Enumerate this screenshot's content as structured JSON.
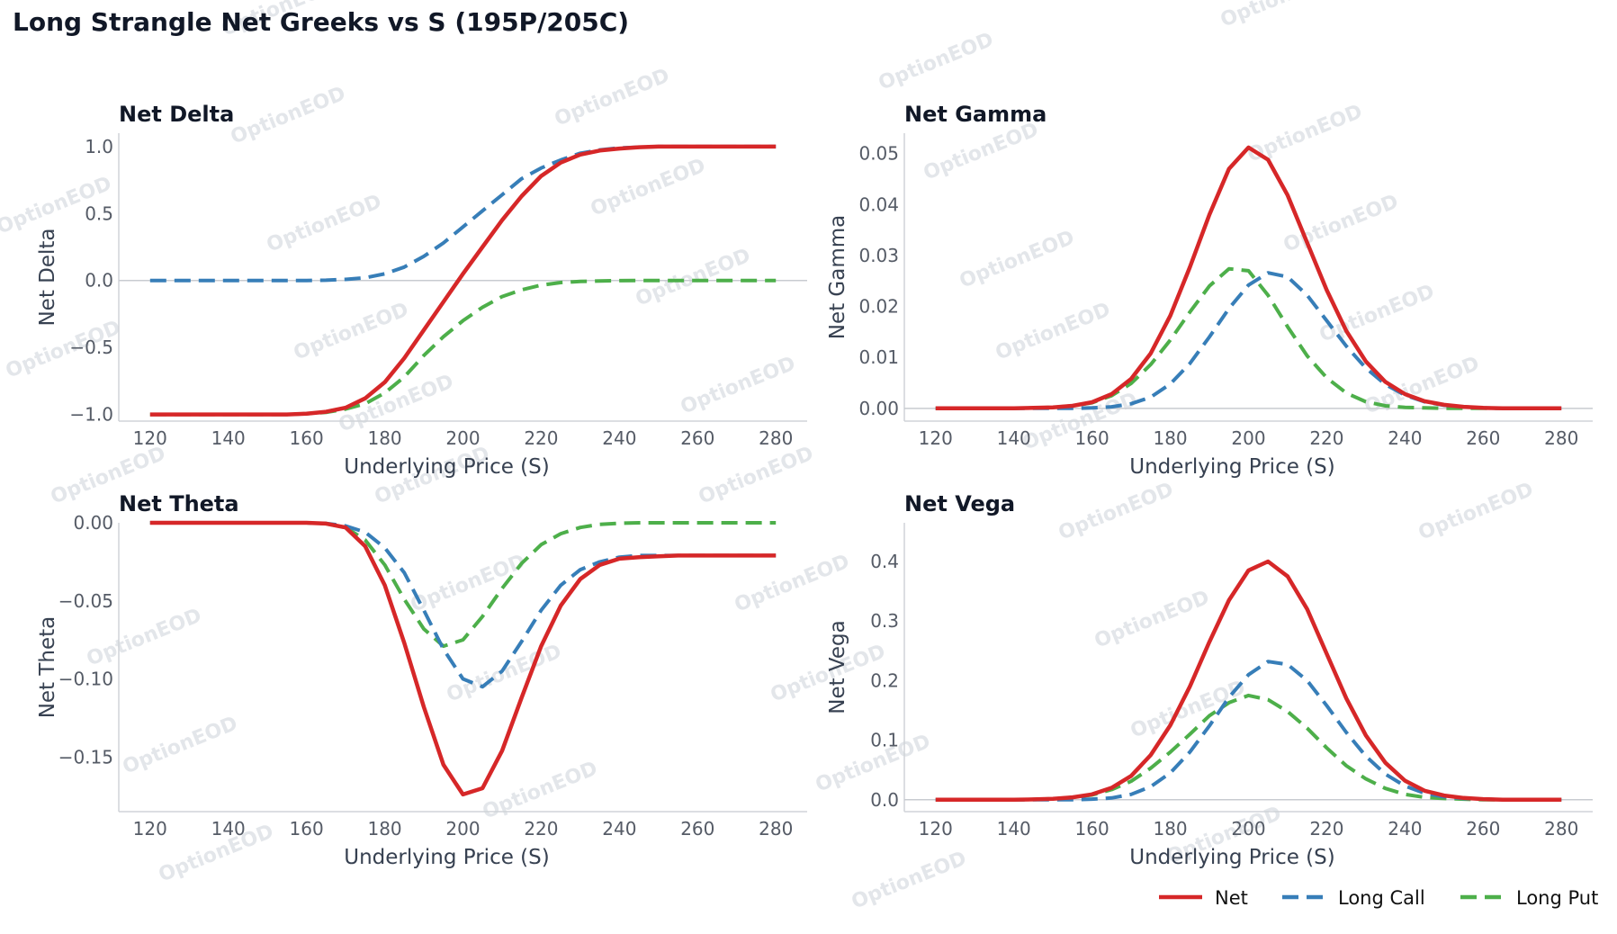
{
  "chart_data": {
    "title": "Long Strangle Net Greeks vs S (195P/205C)",
    "legend": {
      "placement": "bottom-right",
      "entries": [
        {
          "name": "Net",
          "color": "#d62728",
          "style": "solid"
        },
        {
          "name": "Long Call",
          "color": "#377eb8",
          "style": "dashed"
        },
        {
          "name": "Long Put",
          "color": "#4daf4a",
          "style": "dashed"
        }
      ]
    },
    "watermark": "OptionEOD",
    "panels": [
      {
        "id": "delta",
        "type": "line",
        "title": "Net Delta",
        "xlabel": "Underlying Price (S)",
        "ylabel": "Net Delta",
        "xlim": [
          112,
          288
        ],
        "ylim": [
          -1.05,
          1.1
        ],
        "xticks": [
          120,
          140,
          160,
          180,
          200,
          220,
          240,
          260,
          280
        ],
        "yticks": [
          1.0,
          0.5,
          0.0,
          -0.5,
          -1.0
        ],
        "ytick_labels": [
          "1.0",
          "0.5",
          "0.0",
          "−0.5",
          "−1.0"
        ],
        "zero_line": true,
        "x": [
          120,
          125,
          130,
          135,
          140,
          145,
          150,
          155,
          160,
          165,
          170,
          175,
          180,
          185,
          190,
          195,
          200,
          205,
          210,
          215,
          220,
          225,
          230,
          235,
          240,
          245,
          250,
          255,
          260,
          265,
          270,
          275,
          280
        ],
        "series": [
          {
            "name": "Net",
            "values": [
              -1.0,
              -1.0,
              -1.0,
              -1.0,
              -1.0,
              -1.0,
              -1.0,
              -1.0,
              -0.995,
              -0.98,
              -0.95,
              -0.88,
              -0.76,
              -0.58,
              -0.37,
              -0.16,
              0.05,
              0.25,
              0.45,
              0.63,
              0.78,
              0.88,
              0.94,
              0.97,
              0.985,
              0.995,
              1.0,
              1.0,
              1.0,
              1.0,
              1.0,
              1.0,
              1.0
            ]
          },
          {
            "name": "Long Call",
            "values": [
              0.0,
              0.0,
              0.0,
              0.0,
              0.0,
              0.0,
              0.0,
              0.0,
              0.0,
              0.002,
              0.008,
              0.02,
              0.05,
              0.1,
              0.18,
              0.28,
              0.4,
              0.52,
              0.64,
              0.76,
              0.84,
              0.9,
              0.95,
              0.975,
              0.99,
              0.995,
              1.0,
              1.0,
              1.0,
              1.0,
              1.0,
              1.0,
              1.0
            ]
          },
          {
            "name": "Long Put",
            "values": [
              -1.0,
              -1.0,
              -1.0,
              -1.0,
              -1.0,
              -1.0,
              -1.0,
              -1.0,
              -0.995,
              -0.985,
              -0.96,
              -0.92,
              -0.84,
              -0.72,
              -0.56,
              -0.42,
              -0.3,
              -0.2,
              -0.12,
              -0.07,
              -0.035,
              -0.015,
              -0.007,
              -0.003,
              -0.001,
              0.0,
              0.0,
              0.0,
              0.0,
              0.0,
              0.0,
              0.0,
              0.0
            ]
          }
        ]
      },
      {
        "id": "gamma",
        "type": "line",
        "title": "Net Gamma",
        "xlabel": "Underlying Price (S)",
        "ylabel": "Net Gamma",
        "xlim": [
          112,
          288
        ],
        "ylim": [
          -0.0025,
          0.054
        ],
        "xticks": [
          120,
          140,
          160,
          180,
          200,
          220,
          240,
          260,
          280
        ],
        "yticks": [
          0.05,
          0.04,
          0.03,
          0.02,
          0.01,
          0.0
        ],
        "ytick_labels": [
          "0.05",
          "0.04",
          "0.03",
          "0.02",
          "0.01",
          "0.00"
        ],
        "zero_line": true,
        "x": [
          120,
          125,
          130,
          135,
          140,
          145,
          150,
          155,
          160,
          165,
          170,
          175,
          180,
          185,
          190,
          195,
          200,
          205,
          210,
          215,
          220,
          225,
          230,
          235,
          240,
          245,
          250,
          255,
          260,
          265,
          270,
          275,
          280
        ],
        "series": [
          {
            "name": "Net",
            "values": [
              0.0,
              0.0,
              0.0,
              0.0,
              0.0,
              0.0001,
              0.0002,
              0.0005,
              0.0012,
              0.0028,
              0.0058,
              0.0108,
              0.0182,
              0.0277,
              0.038,
              0.047,
              0.0512,
              0.0488,
              0.0418,
              0.0325,
              0.0232,
              0.0152,
              0.0092,
              0.0052,
              0.0028,
              0.0014,
              0.0007,
              0.0003,
              0.0001,
              0.0,
              0.0,
              0.0,
              0.0
            ]
          },
          {
            "name": "Long Call",
            "values": [
              0.0,
              0.0,
              0.0,
              0.0,
              0.0,
              0.0,
              0.0,
              0.0,
              0.0001,
              0.0003,
              0.0009,
              0.0022,
              0.0048,
              0.0088,
              0.014,
              0.0196,
              0.0242,
              0.0266,
              0.0258,
              0.0222,
              0.0172,
              0.0122,
              0.0079,
              0.0047,
              0.0026,
              0.0013,
              0.0006,
              0.0003,
              0.0001,
              0.0,
              0.0,
              0.0,
              0.0
            ]
          },
          {
            "name": "Long Put",
            "values": [
              0.0,
              0.0,
              0.0,
              0.0,
              0.0,
              0.0001,
              0.0002,
              0.0005,
              0.0011,
              0.0025,
              0.0049,
              0.0086,
              0.0134,
              0.0189,
              0.024,
              0.0274,
              0.027,
              0.0222,
              0.016,
              0.0103,
              0.006,
              0.003,
              0.0013,
              0.0005,
              0.0002,
              0.0001,
              0.0,
              0.0,
              0.0,
              0.0,
              0.0,
              0.0,
              0.0
            ]
          }
        ]
      },
      {
        "id": "theta",
        "type": "line",
        "title": "Net Theta",
        "xlabel": "Underlying Price (S)",
        "ylabel": "Net Theta",
        "xlim": [
          112,
          288
        ],
        "ylim": [
          -0.185,
          0.0
        ],
        "xticks": [
          120,
          140,
          160,
          180,
          200,
          220,
          240,
          260,
          280
        ],
        "yticks": [
          0.0,
          -0.05,
          -0.1,
          -0.15
        ],
        "ytick_labels": [
          "0.00",
          "−0.05",
          "−0.10",
          "−0.15"
        ],
        "zero_line": false,
        "x": [
          120,
          125,
          130,
          135,
          140,
          145,
          150,
          155,
          160,
          165,
          170,
          175,
          180,
          185,
          190,
          195,
          200,
          205,
          210,
          215,
          220,
          225,
          230,
          235,
          240,
          245,
          250,
          255,
          260,
          265,
          270,
          275,
          280
        ],
        "series": [
          {
            "name": "Net",
            "values": [
              0.0,
              0.0,
              0.0,
              0.0,
              0.0,
              0.0,
              0.0,
              0.0,
              0.0,
              -0.0005,
              -0.003,
              -0.015,
              -0.04,
              -0.077,
              -0.118,
              -0.155,
              -0.174,
              -0.17,
              -0.146,
              -0.112,
              -0.079,
              -0.053,
              -0.036,
              -0.027,
              -0.023,
              -0.022,
              -0.0215,
              -0.021,
              -0.021,
              -0.021,
              -0.021,
              -0.021,
              -0.021
            ]
          },
          {
            "name": "Long Call",
            "values": [
              0.0,
              0.0,
              0.0,
              0.0,
              0.0,
              0.0,
              0.0,
              0.0,
              0.0,
              -0.0004,
              -0.002,
              -0.006,
              -0.016,
              -0.032,
              -0.056,
              -0.081,
              -0.1,
              -0.105,
              -0.095,
              -0.076,
              -0.056,
              -0.04,
              -0.03,
              -0.025,
              -0.022,
              -0.021,
              -0.021,
              -0.021,
              -0.021,
              -0.021,
              -0.021,
              -0.021,
              -0.021
            ]
          },
          {
            "name": "Long Put",
            "values": [
              0.0,
              0.0,
              0.0,
              0.0,
              0.0,
              0.0,
              0.0,
              0.0,
              0.0,
              -0.0006,
              -0.003,
              -0.011,
              -0.027,
              -0.049,
              -0.068,
              -0.079,
              -0.075,
              -0.06,
              -0.042,
              -0.026,
              -0.014,
              -0.007,
              -0.003,
              -0.001,
              -0.0003,
              0.0,
              0.0,
              0.0,
              0.0,
              0.0,
              0.0,
              0.0,
              0.0
            ]
          }
        ]
      },
      {
        "id": "vega",
        "type": "line",
        "title": "Net Vega",
        "xlabel": "Underlying Price (S)",
        "ylabel": "Net Vega",
        "xlim": [
          112,
          288
        ],
        "ylim": [
          -0.02,
          0.465
        ],
        "xticks": [
          120,
          140,
          160,
          180,
          200,
          220,
          240,
          260,
          280
        ],
        "yticks": [
          0.4,
          0.3,
          0.2,
          0.1,
          0.0
        ],
        "ytick_labels": [
          "0.4",
          "0.3",
          "0.2",
          "0.1",
          "0.0"
        ],
        "zero_line": true,
        "x": [
          120,
          125,
          130,
          135,
          140,
          145,
          150,
          155,
          160,
          165,
          170,
          175,
          180,
          185,
          190,
          195,
          200,
          205,
          210,
          215,
          220,
          225,
          230,
          235,
          240,
          245,
          250,
          255,
          260,
          265,
          270,
          275,
          280
        ],
        "series": [
          {
            "name": "Net",
            "values": [
              0.0,
              0.0,
              0.0,
              0.0,
              0.0,
              0.0005,
              0.0015,
              0.004,
              0.009,
              0.02,
              0.04,
              0.075,
              0.125,
              0.19,
              0.265,
              0.335,
              0.385,
              0.4,
              0.375,
              0.32,
              0.245,
              0.17,
              0.108,
              0.062,
              0.032,
              0.015,
              0.007,
              0.003,
              0.001,
              0.0,
              0.0,
              0.0,
              0.0
            ]
          },
          {
            "name": "Long Call",
            "values": [
              0.0,
              0.0,
              0.0,
              0.0,
              0.0,
              0.0,
              0.0,
              0.0,
              0.001,
              0.003,
              0.009,
              0.022,
              0.045,
              0.08,
              0.124,
              0.172,
              0.21,
              0.232,
              0.227,
              0.2,
              0.158,
              0.113,
              0.073,
              0.043,
              0.023,
              0.011,
              0.005,
              0.002,
              0.001,
              0.0,
              0.0,
              0.0,
              0.0
            ]
          },
          {
            "name": "Long Put",
            "values": [
              0.0,
              0.0,
              0.0,
              0.0,
              0.0,
              0.0005,
              0.0015,
              0.004,
              0.008,
              0.017,
              0.031,
              0.053,
              0.08,
              0.11,
              0.141,
              0.163,
              0.175,
              0.168,
              0.148,
              0.12,
              0.087,
              0.057,
              0.035,
              0.019,
              0.009,
              0.004,
              0.002,
              0.001,
              0.0,
              0.0,
              0.0,
              0.0,
              0.0
            ]
          }
        ]
      }
    ]
  }
}
